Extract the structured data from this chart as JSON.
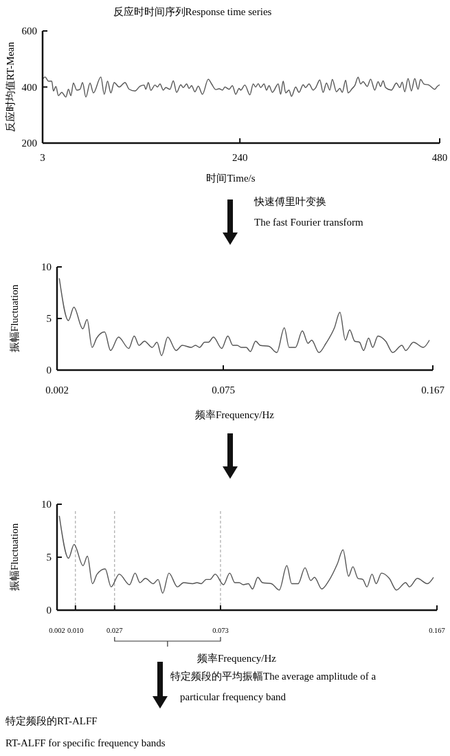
{
  "chart_data": [
    {
      "type": "line",
      "title": "反应时时间序列Response time series",
      "xlabel": "时间Time/s",
      "ylabel": "反应时均值RT-Mean",
      "xlim": [
        3,
        480
      ],
      "xticks": [
        3,
        240,
        480
      ],
      "ylim": [
        200,
        600
      ],
      "yticks": [
        200,
        400,
        600
      ],
      "annotations": [
        "快速傅里叶变换",
        "The fast Fourier transform"
      ],
      "series": [
        {
          "color": "#555555",
          "x": [
            3,
            6,
            10,
            14,
            16,
            19,
            22,
            26,
            31,
            34,
            37,
            40,
            44,
            48,
            51,
            55,
            60,
            64,
            73,
            77,
            81,
            85,
            89,
            95,
            102,
            107,
            114,
            120,
            125,
            127,
            130,
            133,
            138,
            141,
            144,
            148,
            151,
            156,
            160,
            164,
            169,
            172,
            176,
            179,
            182,
            186,
            190,
            195,
            202,
            206,
            211,
            215,
            219,
            222,
            227,
            231,
            235,
            239,
            241,
            246,
            252,
            256,
            259,
            262,
            265,
            269,
            272,
            275,
            279,
            286,
            289,
            292,
            295,
            299,
            302,
            307,
            311,
            316,
            319,
            323,
            328,
            331,
            336,
            340,
            344,
            348,
            351,
            356,
            360,
            363,
            367,
            370,
            375,
            378,
            382,
            385,
            388,
            393,
            397,
            402,
            406,
            409,
            412,
            415,
            422,
            428,
            432,
            435,
            438,
            442,
            446,
            450,
            454,
            457,
            461,
            467,
            470,
            474,
            477,
            480
          ],
          "values": [
            428,
            436,
            421,
            421,
            386,
            402,
            369,
            381,
            364,
            392,
            369,
            414,
            389,
            392,
            416,
            364,
            414,
            379,
            436,
            374,
            421,
            379,
            416,
            400,
            416,
            392,
            386,
            403,
            407,
            392,
            416,
            388,
            407,
            400,
            411,
            389,
            398,
            392,
            422,
            381,
            408,
            398,
            411,
            395,
            405,
            383,
            403,
            374,
            428,
            411,
            391,
            394,
            389,
            400,
            392,
            405,
            374,
            395,
            389,
            407,
            372,
            411,
            400,
            412,
            398,
            411,
            389,
            405,
            381,
            411,
            374,
            421,
            379,
            389,
            367,
            400,
            381,
            408,
            398,
            411,
            389,
            397,
            425,
            381,
            414,
            389,
            427,
            383,
            395,
            381,
            424,
            379,
            395,
            405,
            435,
            411,
            419,
            402,
            428,
            389,
            419,
            402,
            422,
            398,
            389,
            414,
            398,
            417,
            383,
            430,
            386,
            430,
            392,
            427,
            411,
            407,
            400,
            392,
            402,
            408
          ]
        }
      ]
    },
    {
      "type": "line",
      "xlabel": "频率Frequency/Hz",
      "ylabel": "振幅Fluctuation",
      "xlim": [
        0.002,
        0.167
      ],
      "xticks": [
        0.002,
        0.075,
        0.167
      ],
      "ylim": [
        0,
        10
      ],
      "yticks": [
        0,
        5,
        10
      ],
      "series": [
        {
          "color": "#555555",
          "x": [
            0.003,
            0.007,
            0.0094,
            0.0133,
            0.0152,
            0.0174,
            0.0194,
            0.0229,
            0.0255,
            0.029,
            0.0335,
            0.0359,
            0.038,
            0.0404,
            0.0438,
            0.0459,
            0.0479,
            0.0506,
            0.0543,
            0.057,
            0.0609,
            0.0628,
            0.0646,
            0.0668,
            0.0685,
            0.0707,
            0.0743,
            0.077,
            0.0792,
            0.0811,
            0.0829,
            0.0851,
            0.0869,
            0.0892,
            0.0912,
            0.0951,
            0.0985,
            0.1018,
            0.1039,
            0.1067,
            0.1097,
            0.1122,
            0.1138,
            0.117,
            0.1201,
            0.1238,
            0.1262,
            0.1286,
            0.1305,
            0.1327,
            0.1348,
            0.1366,
            0.1388,
            0.1406,
            0.1429,
            0.1463,
            0.1494,
            0.1534,
            0.1551,
            0.1585,
            0.1628,
            0.1655
          ],
          "values": [
            8.9,
            4.8,
            6.1,
            4.0,
            4.9,
            2.2,
            3.1,
            3.7,
            1.9,
            3.2,
            2.1,
            3.3,
            2.4,
            2.8,
            2.2,
            2.7,
            1.4,
            3.2,
            1.9,
            2.4,
            2.2,
            2.4,
            2.2,
            2.7,
            2.7,
            3.2,
            2.1,
            3.3,
            2.4,
            2.4,
            2.2,
            2.2,
            1.8,
            2.8,
            2.4,
            2.3,
            1.7,
            4.1,
            2.2,
            2.2,
            3.8,
            2.6,
            2.9,
            1.7,
            2.6,
            4.1,
            5.6,
            2.9,
            3.9,
            2.8,
            2.7,
            1.9,
            3.1,
            2.2,
            3.3,
            2.8,
            1.7,
            2.4,
            1.9,
            2.7,
            2.2,
            2.9
          ]
        }
      ]
    },
    {
      "type": "line",
      "xlabel": "频率Frequency/Hz",
      "ylabel": "振幅Fluctuation",
      "xlim": [
        0.002,
        0.167
      ],
      "xticks": [
        0.002,
        {
          "value": 0.01,
          "label": "0.010"
        },
        0.027,
        0.073,
        0.167
      ],
      "ylim": [
        0,
        10
      ],
      "yticks": [
        0,
        5,
        10
      ],
      "annotations": [
        "特定频段的平均振幅The average amplitude of a particular frequency band",
        "特定频段的RT-ALFF",
        "RT-ALFF for specific frequency bands"
      ],
      "ref_lines": [
        {
          "axis": "x",
          "value": 0.01,
          "color": "#999999",
          "line_style": "dashed"
        },
        {
          "axis": "x",
          "value": 0.027,
          "color": "#999999",
          "line_style": "dashed"
        },
        {
          "axis": "x",
          "value": 0.073,
          "color": "#999999",
          "line_style": "dashed"
        }
      ],
      "series": [
        {
          "color": "#555555",
          "x": [
            0.003,
            0.007,
            0.0094,
            0.0133,
            0.0152,
            0.0174,
            0.0194,
            0.0229,
            0.0255,
            0.029,
            0.0335,
            0.0359,
            0.038,
            0.0404,
            0.0438,
            0.0459,
            0.0479,
            0.0506,
            0.0543,
            0.057,
            0.0609,
            0.0628,
            0.0646,
            0.0668,
            0.0685,
            0.0707,
            0.0743,
            0.077,
            0.0792,
            0.0811,
            0.0829,
            0.0851,
            0.0869,
            0.0892,
            0.0912,
            0.0951,
            0.0985,
            0.1018,
            0.1039,
            0.1067,
            0.1097,
            0.1122,
            0.1138,
            0.117,
            0.1201,
            0.1238,
            0.1262,
            0.1286,
            0.1305,
            0.1327,
            0.1348,
            0.1366,
            0.1388,
            0.1406,
            0.1429,
            0.1463,
            0.1494,
            0.1534,
            0.1551,
            0.1585,
            0.1628,
            0.1655
          ],
          "values": [
            8.9,
            4.9,
            6.2,
            4.2,
            5.1,
            2.5,
            3.4,
            3.9,
            2.2,
            3.4,
            2.4,
            3.5,
            2.6,
            3.0,
            2.5,
            2.9,
            1.6,
            3.5,
            2.2,
            2.6,
            2.5,
            2.6,
            2.5,
            2.9,
            2.9,
            3.4,
            2.4,
            3.5,
            2.6,
            2.6,
            2.4,
            2.5,
            2.0,
            3.1,
            2.6,
            2.5,
            1.9,
            4.2,
            2.5,
            2.5,
            4.0,
            2.8,
            3.1,
            2.0,
            2.8,
            4.4,
            5.7,
            3.2,
            4.1,
            3.0,
            2.9,
            2.2,
            3.4,
            2.5,
            3.5,
            3.0,
            1.9,
            2.6,
            2.2,
            3.0,
            2.5,
            3.1
          ]
        }
      ]
    }
  ]
}
